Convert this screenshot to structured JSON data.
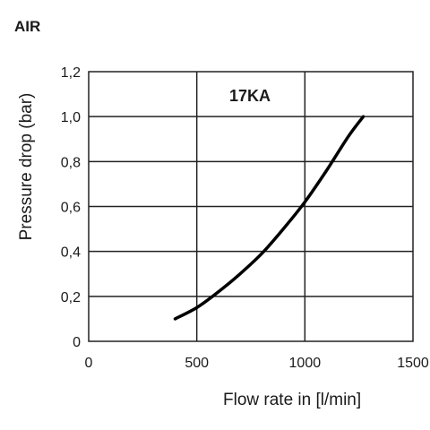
{
  "heading": "AIR",
  "chart_data": {
    "type": "line",
    "xlabel": "Flow rate in [l/min]",
    "ylabel": "Pressure drop (bar)",
    "xlim": [
      0,
      1500
    ],
    "ylim": [
      0,
      1.2
    ],
    "x_ticks": [
      "0",
      "500",
      "1000",
      "1500"
    ],
    "y_ticks": [
      "0",
      "0,2",
      "0,4",
      "0,6",
      "0,8",
      "1,0",
      "1,2"
    ],
    "grid": true,
    "annotation": "17KA",
    "series": [
      {
        "x": [
          400,
          500,
          600,
          700,
          800,
          900,
          1000,
          1100,
          1200,
          1270
        ],
        "y": [
          0.1,
          0.15,
          0.22,
          0.3,
          0.39,
          0.5,
          0.62,
          0.76,
          0.91,
          1.0
        ],
        "color": "#000000"
      }
    ]
  }
}
